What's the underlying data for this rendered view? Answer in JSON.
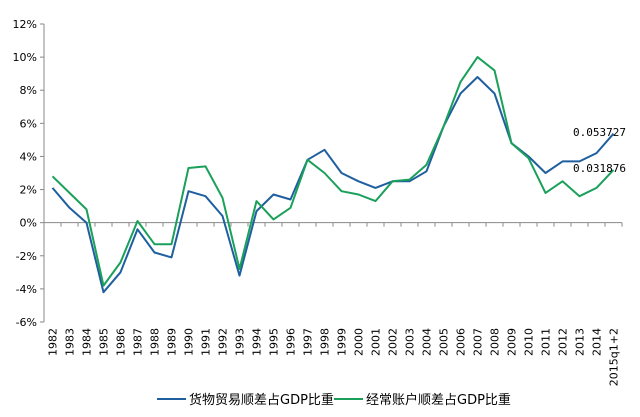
{
  "chart_data": {
    "type": "line",
    "title": "",
    "xlabel": "",
    "ylabel": "",
    "ylim": [
      -0.06,
      0.12
    ],
    "yticks": [
      -0.06,
      -0.04,
      -0.02,
      0,
      0.02,
      0.04,
      0.06,
      0.08,
      0.1,
      0.12
    ],
    "ytick_labels": [
      "-6%",
      "-4%",
      "-2%",
      "0%",
      "2%",
      "4%",
      "6%",
      "8%",
      "10%",
      "12%"
    ],
    "grid": false,
    "legend_position": "bottom",
    "categories": [
      "1982",
      "1983",
      "1984",
      "1985",
      "1986",
      "1987",
      "1988",
      "1989",
      "1990",
      "1991",
      "1992",
      "1993",
      "1994",
      "1995",
      "1996",
      "1997",
      "1998",
      "1999",
      "2000",
      "2001",
      "2002",
      "2003",
      "2004",
      "2005",
      "2006",
      "2007",
      "2008",
      "2009",
      "2010",
      "2011",
      "2012",
      "2013",
      "2014",
      "2015q1+2"
    ],
    "series": [
      {
        "name": "货物贸易顺差占GDP比重",
        "color": "#1f5fa0",
        "values": [
          0.021,
          0.009,
          0.0,
          -0.042,
          -0.03,
          -0.004,
          -0.018,
          -0.021,
          0.019,
          0.016,
          0.004,
          -0.032,
          0.007,
          0.017,
          0.014,
          0.038,
          0.044,
          0.03,
          0.025,
          0.021,
          0.025,
          0.025,
          0.031,
          0.058,
          0.078,
          0.088,
          0.078,
          0.048,
          0.04,
          0.03,
          0.037,
          0.037,
          0.042,
          0.053727
        ]
      },
      {
        "name": "经常账户顺差占GDP比重",
        "color": "#1aa05a",
        "values": [
          0.028,
          0.018,
          0.008,
          -0.038,
          -0.024,
          0.001,
          -0.013,
          -0.013,
          0.033,
          0.034,
          0.015,
          -0.028,
          0.013,
          0.002,
          0.009,
          0.038,
          0.03,
          0.019,
          0.017,
          0.013,
          0.025,
          0.026,
          0.035,
          0.058,
          0.085,
          0.1,
          0.092,
          0.048,
          0.039,
          0.018,
          0.025,
          0.016,
          0.021,
          0.031876
        ]
      }
    ],
    "annotations": [
      "0.053727",
      "0.031876"
    ]
  }
}
